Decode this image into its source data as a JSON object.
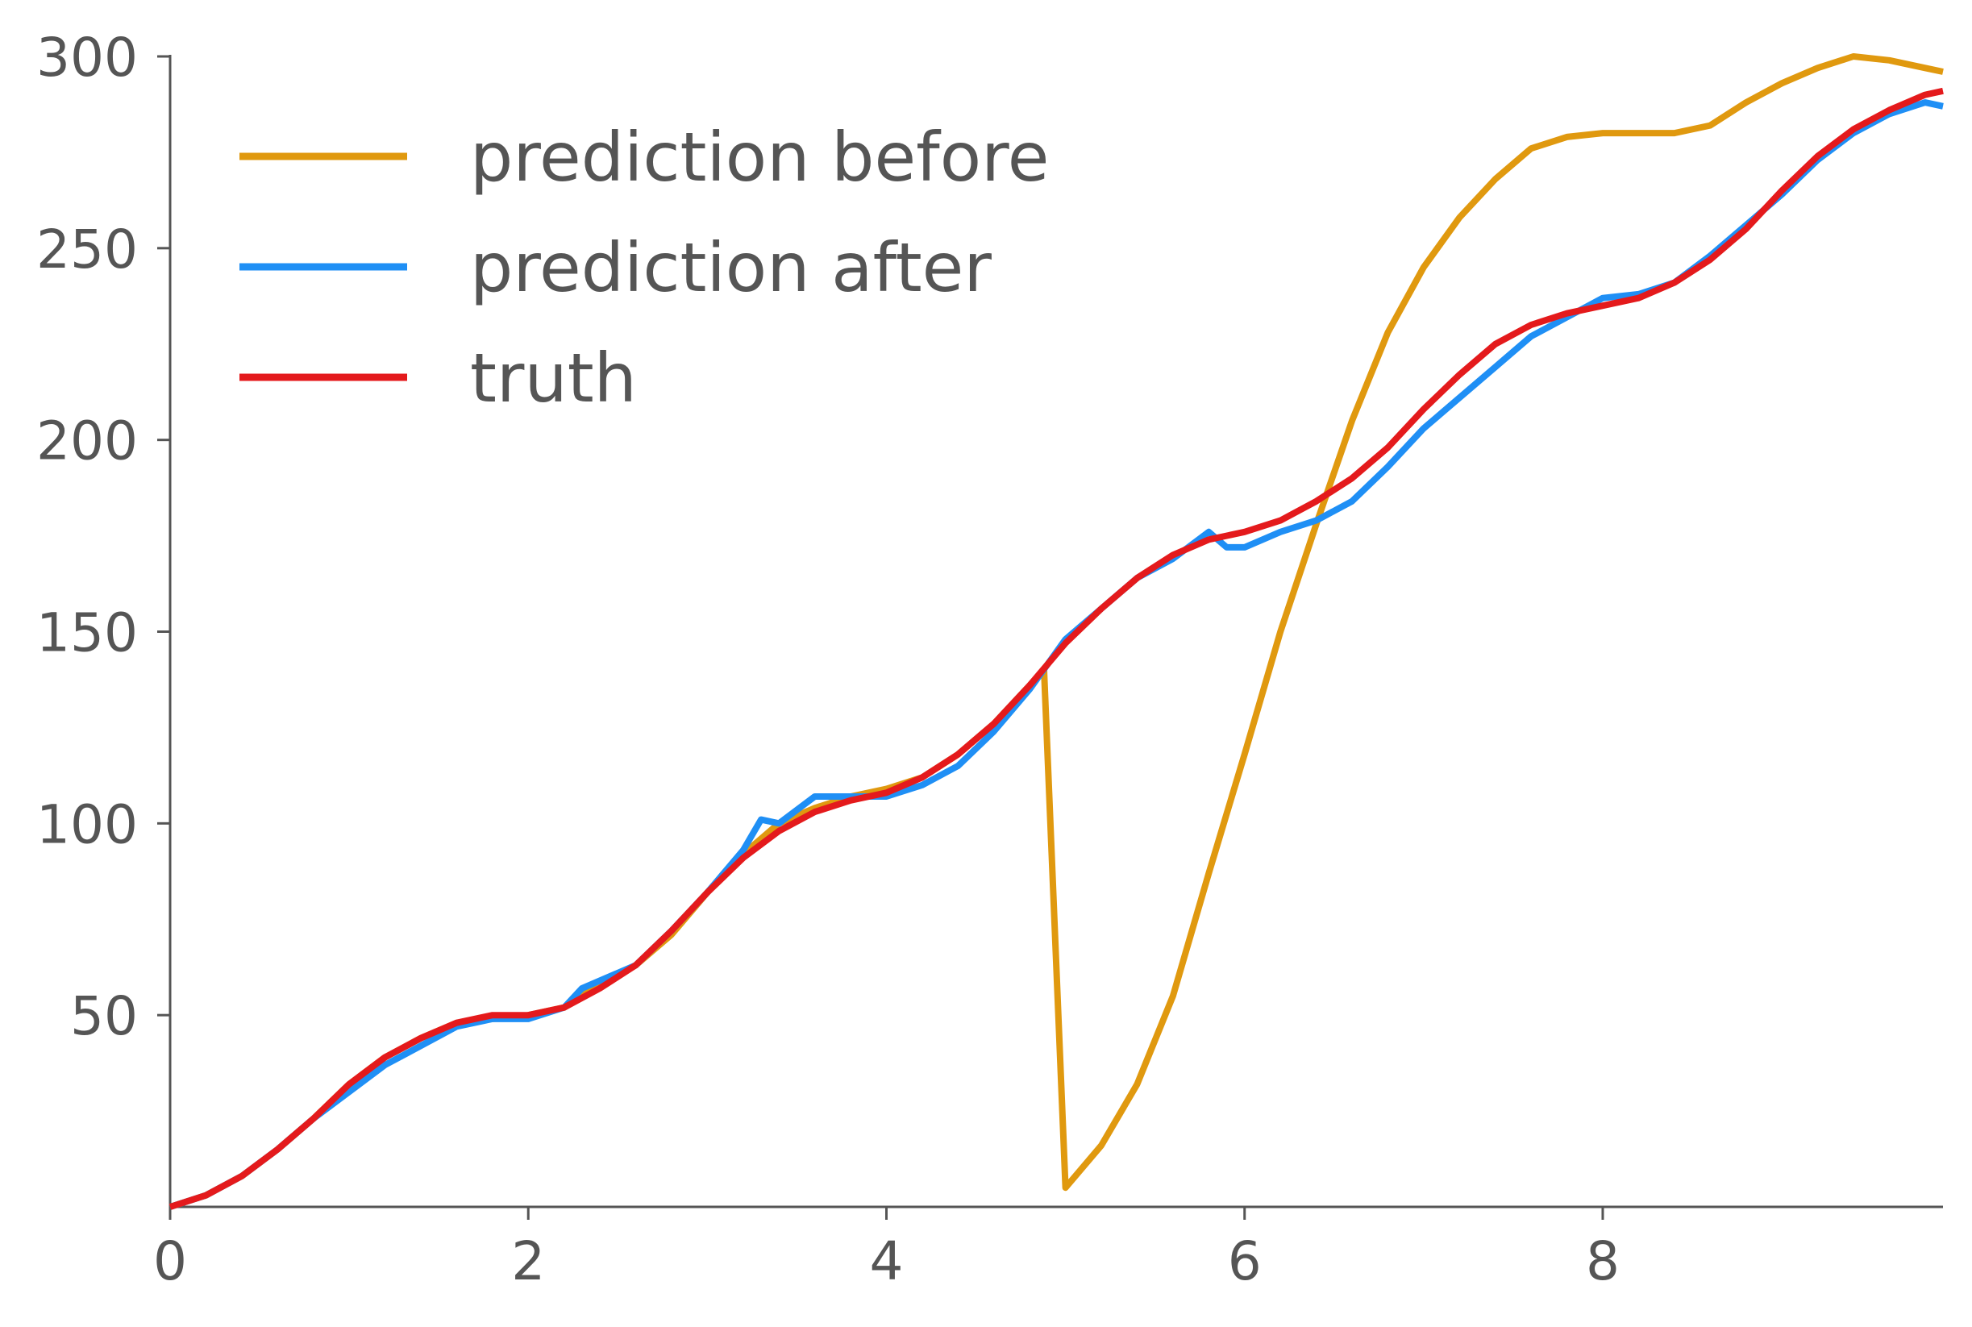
{
  "chart_data": {
    "type": "line",
    "title": "",
    "xlabel": "",
    "ylabel": "",
    "xlim": [
      0,
      9.9
    ],
    "ylim": [
      0,
      300
    ],
    "xticks": [
      0,
      2,
      4,
      6,
      8
    ],
    "xtick_labels": [
      "0",
      "2",
      "4",
      "6",
      "8"
    ],
    "yticks": [
      50,
      100,
      150,
      200,
      250,
      300
    ],
    "ytick_labels": [
      "50",
      "100",
      "150",
      "200",
      "250",
      "300"
    ],
    "grid": false,
    "legend": {
      "placement": "top-left",
      "frame": false
    },
    "series": [
      {
        "name": "prediction before",
        "color": "#e0990f",
        "points": [
          [
            0,
            0
          ],
          [
            0.2,
            3
          ],
          [
            0.4,
            8
          ],
          [
            0.6,
            15
          ],
          [
            0.8,
            23
          ],
          [
            1.0,
            32
          ],
          [
            1.2,
            39
          ],
          [
            1.4,
            44
          ],
          [
            1.6,
            48
          ],
          [
            1.8,
            49
          ],
          [
            2.0,
            50
          ],
          [
            2.2,
            52
          ],
          [
            2.4,
            58
          ],
          [
            2.6,
            63
          ],
          [
            2.8,
            71
          ],
          [
            3.0,
            82
          ],
          [
            3.2,
            92
          ],
          [
            3.4,
            100
          ],
          [
            3.6,
            104
          ],
          [
            3.8,
            107
          ],
          [
            4.0,
            109
          ],
          [
            4.2,
            112
          ],
          [
            4.4,
            118
          ],
          [
            4.6,
            126
          ],
          [
            4.8,
            136
          ],
          [
            4.88,
            140
          ],
          [
            5.0,
            5
          ],
          [
            5.2,
            16
          ],
          [
            5.4,
            32
          ],
          [
            5.6,
            55
          ],
          [
            5.8,
            87
          ],
          [
            6.0,
            118
          ],
          [
            6.2,
            150
          ],
          [
            6.4,
            178
          ],
          [
            6.6,
            205
          ],
          [
            6.8,
            228
          ],
          [
            7.0,
            245
          ],
          [
            7.2,
            258
          ],
          [
            7.4,
            268
          ],
          [
            7.6,
            276
          ],
          [
            7.8,
            279
          ],
          [
            8.0,
            280
          ],
          [
            8.2,
            280
          ],
          [
            8.4,
            280
          ],
          [
            8.6,
            282
          ],
          [
            8.8,
            288
          ],
          [
            9.0,
            293
          ],
          [
            9.2,
            297
          ],
          [
            9.4,
            300
          ],
          [
            9.6,
            299
          ],
          [
            9.8,
            297
          ],
          [
            9.9,
            296
          ]
        ]
      },
      {
        "name": "prediction after",
        "color": "#1f8ff5",
        "points": [
          [
            0,
            0
          ],
          [
            0.2,
            3
          ],
          [
            0.4,
            8
          ],
          [
            0.6,
            15
          ],
          [
            0.8,
            23
          ],
          [
            1.0,
            30
          ],
          [
            1.2,
            37
          ],
          [
            1.4,
            42
          ],
          [
            1.6,
            47
          ],
          [
            1.8,
            49
          ],
          [
            2.0,
            49
          ],
          [
            2.2,
            52
          ],
          [
            2.3,
            57
          ],
          [
            2.6,
            63
          ],
          [
            2.8,
            72
          ],
          [
            3.0,
            82
          ],
          [
            3.2,
            93
          ],
          [
            3.3,
            101
          ],
          [
            3.4,
            100
          ],
          [
            3.6,
            107
          ],
          [
            3.8,
            107
          ],
          [
            4.0,
            107
          ],
          [
            4.2,
            110
          ],
          [
            4.4,
            115
          ],
          [
            4.6,
            124
          ],
          [
            4.8,
            135
          ],
          [
            5.0,
            148
          ],
          [
            5.2,
            156
          ],
          [
            5.4,
            164
          ],
          [
            5.6,
            169
          ],
          [
            5.8,
            176
          ],
          [
            5.9,
            172
          ],
          [
            6.0,
            172
          ],
          [
            6.2,
            176
          ],
          [
            6.4,
            179
          ],
          [
            6.6,
            184
          ],
          [
            6.8,
            193
          ],
          [
            7.0,
            203
          ],
          [
            7.2,
            211
          ],
          [
            7.4,
            219
          ],
          [
            7.6,
            227
          ],
          [
            7.8,
            232
          ],
          [
            8.0,
            237
          ],
          [
            8.2,
            238
          ],
          [
            8.4,
            241
          ],
          [
            8.6,
            248
          ],
          [
            8.8,
            256
          ],
          [
            9.0,
            264
          ],
          [
            9.2,
            273
          ],
          [
            9.4,
            280
          ],
          [
            9.6,
            285
          ],
          [
            9.8,
            288
          ],
          [
            9.9,
            287
          ]
        ]
      },
      {
        "name": "truth",
        "color": "#e41a1c",
        "points": [
          [
            0,
            0
          ],
          [
            0.2,
            3
          ],
          [
            0.4,
            8
          ],
          [
            0.6,
            15
          ],
          [
            0.8,
            23
          ],
          [
            1.0,
            32
          ],
          [
            1.2,
            39
          ],
          [
            1.4,
            44
          ],
          [
            1.6,
            48
          ],
          [
            1.8,
            50
          ],
          [
            2.0,
            50
          ],
          [
            2.2,
            52
          ],
          [
            2.4,
            57
          ],
          [
            2.6,
            63
          ],
          [
            2.8,
            72
          ],
          [
            3.0,
            82
          ],
          [
            3.2,
            91
          ],
          [
            3.4,
            98
          ],
          [
            3.6,
            103
          ],
          [
            3.8,
            106
          ],
          [
            4.0,
            108
          ],
          [
            4.2,
            112
          ],
          [
            4.4,
            118
          ],
          [
            4.6,
            126
          ],
          [
            4.8,
            136
          ],
          [
            5.0,
            147
          ],
          [
            5.2,
            156
          ],
          [
            5.4,
            164
          ],
          [
            5.6,
            170
          ],
          [
            5.8,
            174
          ],
          [
            6.0,
            176
          ],
          [
            6.2,
            179
          ],
          [
            6.4,
            184
          ],
          [
            6.6,
            190
          ],
          [
            6.8,
            198
          ],
          [
            7.0,
            208
          ],
          [
            7.2,
            217
          ],
          [
            7.4,
            225
          ],
          [
            7.6,
            230
          ],
          [
            7.8,
            233
          ],
          [
            8.0,
            235
          ],
          [
            8.2,
            237
          ],
          [
            8.4,
            241
          ],
          [
            8.6,
            247
          ],
          [
            8.8,
            255
          ],
          [
            9.0,
            265
          ],
          [
            9.2,
            274
          ],
          [
            9.4,
            281
          ],
          [
            9.6,
            286
          ],
          [
            9.8,
            290
          ],
          [
            9.9,
            291
          ]
        ]
      }
    ]
  }
}
